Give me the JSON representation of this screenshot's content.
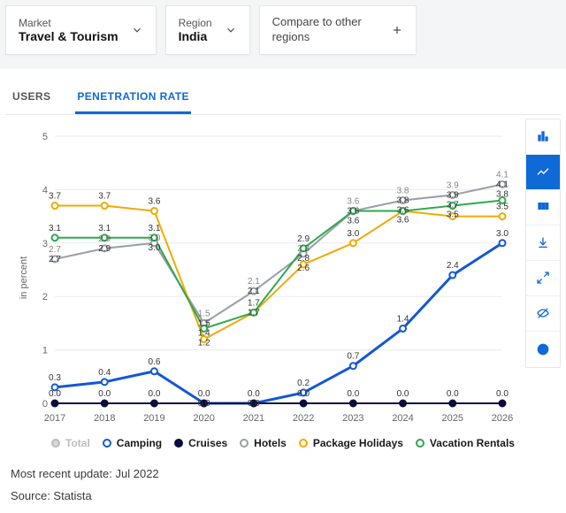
{
  "filters": {
    "market": {
      "label": "Market",
      "value": "Travel & Tourism"
    },
    "region": {
      "label": "Region",
      "value": "India"
    },
    "compare": {
      "label": "Compare to other regions"
    }
  },
  "tabs": {
    "users": "USERS",
    "penetration": "PENETRATION RATE",
    "active": "penetration"
  },
  "chart": {
    "type": "line",
    "y_label": "in percent",
    "x_years": [
      2017,
      2018,
      2019,
      2020,
      2021,
      2022,
      2023,
      2024,
      2025,
      2026
    ],
    "ylim": [
      0,
      5
    ],
    "ytick_step": 1,
    "background": "#ffffff",
    "grid_color": "#e9ebee",
    "axis_text_color": "#666666",
    "label_fontsize": 10,
    "series": [
      {
        "key": "total",
        "name": "Total",
        "color": "#b9bbbe",
        "dimmed": true,
        "highlight": false,
        "values": [
          2.7,
          2.9,
          3.0,
          1.5,
          2.1,
          2.8,
          3.6,
          3.8,
          3.9,
          4.1
        ]
      },
      {
        "key": "camping",
        "name": "Camping",
        "color": "#1457d6",
        "dimmed": false,
        "highlight": true,
        "values": [
          0.3,
          0.4,
          0.6,
          0.0,
          0.0,
          0.2,
          0.7,
          1.4,
          2.4,
          3.0
        ]
      },
      {
        "key": "cruises",
        "name": "Cruises",
        "color": "#0b0e3a",
        "dimmed": false,
        "highlight": false,
        "solid": true,
        "values": [
          0.0,
          0.0,
          0.0,
          0.0,
          0.0,
          0.0,
          0.0,
          0.0,
          0.0,
          0.0
        ]
      },
      {
        "key": "hotels",
        "name": "Hotels",
        "color": "#9aa0a6",
        "dimmed": false,
        "highlight": false,
        "values": [
          2.7,
          2.9,
          3.0,
          1.5,
          2.1,
          2.8,
          3.6,
          3.8,
          3.9,
          4.1
        ]
      },
      {
        "key": "package",
        "name": "Package Holidays",
        "color": "#f2a900",
        "dimmed": false,
        "highlight": false,
        "values": [
          3.7,
          3.7,
          3.6,
          1.2,
          1.7,
          2.6,
          3.0,
          3.6,
          3.5,
          3.5
        ]
      },
      {
        "key": "vacation",
        "name": "Vacation Rentals",
        "color": "#2fa84f",
        "dimmed": false,
        "highlight": false,
        "values": [
          3.1,
          3.1,
          3.1,
          1.4,
          1.7,
          2.9,
          3.6,
          3.6,
          3.7,
          3.8
        ]
      }
    ],
    "label_series": [
      "total",
      "camping",
      "cruises",
      "package",
      "vacation",
      "hotels"
    ]
  },
  "footer": {
    "updated": "Most recent update: Jul 2022",
    "source": "Source: Statista"
  }
}
